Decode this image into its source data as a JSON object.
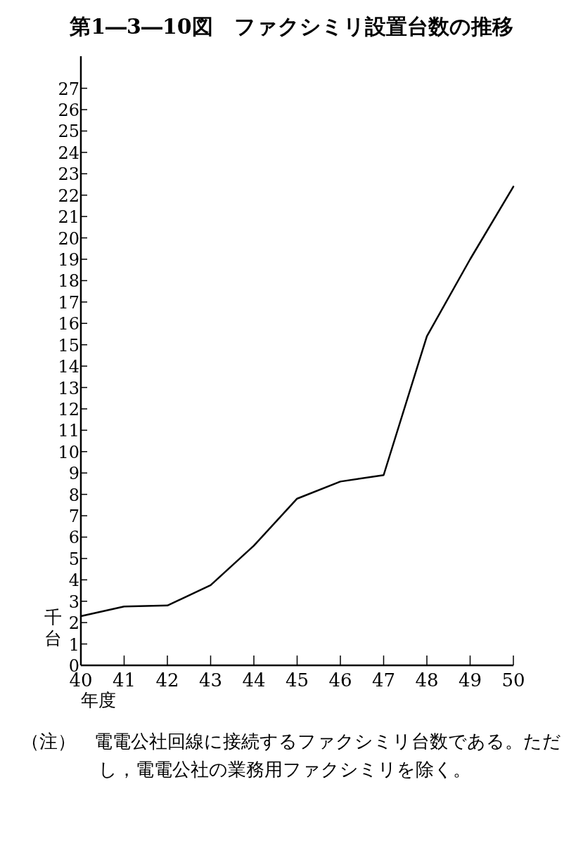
{
  "chart_data": {
    "type": "line",
    "title": "第1―3―10図　ファクシミリ設置台数の推移",
    "x": [
      40,
      41,
      42,
      43,
      44,
      45,
      46,
      47,
      48,
      49,
      50
    ],
    "series": [
      {
        "color": "#000000",
        "values": [
          2.3,
          2.75,
          2.8,
          3.75,
          5.6,
          7.8,
          8.6,
          8.9,
          15.4,
          19.0,
          22.4
        ]
      }
    ],
    "xlim": [
      40,
      50
    ],
    "xticks": [
      40,
      41,
      42,
      43,
      44,
      45,
      46,
      47,
      48,
      49,
      50
    ],
    "ylim": [
      0,
      28.5
    ],
    "yticks": [
      0,
      1,
      2,
      3,
      4,
      5,
      6,
      7,
      8,
      9,
      10,
      11,
      12,
      13,
      14,
      15,
      16,
      17,
      18,
      19,
      20,
      21,
      22,
      23,
      24,
      25,
      26,
      27
    ],
    "xlabel": "年度",
    "ylabel": "千台",
    "grid": false,
    "marker": "none",
    "line_style": "solid",
    "annotations": [
      "（注）　電電公社回線に接続するファクシミリ台数である。ただし，電電公社の業務用ファクシミリを除く。"
    ]
  }
}
